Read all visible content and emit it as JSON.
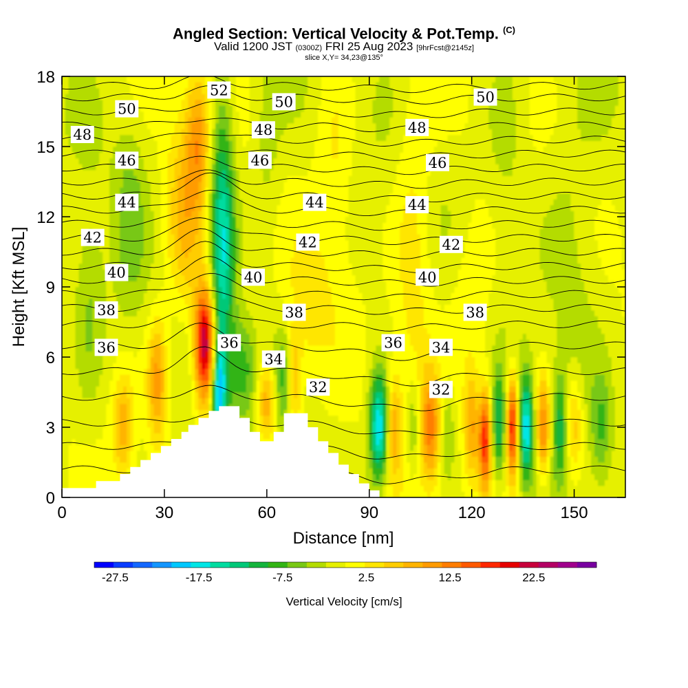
{
  "header": {
    "title": "Angled Section: Vertical Velocity & Pot.Temp.",
    "title_mark": "(C)",
    "subtitle_pre": "Valid 1200 JST",
    "subtitle_zulu": "(0300Z)",
    "subtitle_mid": "FRI 25 Aug 2023",
    "subtitle_fcst": "[9hrFcst@2145z]",
    "slice": "slice X,Y= 34,23@135°"
  },
  "chart_data": {
    "type": "heatmap",
    "xlabel": "Distance [nm]",
    "ylabel": "Height [Kft MSL]",
    "xlim": [
      0,
      165
    ],
    "ylim": [
      0,
      18
    ],
    "x_ticks": [
      0,
      30,
      60,
      90,
      120,
      150
    ],
    "y_ticks": [
      0,
      3,
      6,
      9,
      12,
      15,
      18
    ],
    "x_tick_labels": [
      "0",
      "30",
      "60",
      "90",
      "120",
      "150"
    ],
    "y_tick_labels": [
      "0",
      "3",
      "6",
      "9",
      "12",
      "15",
      "18"
    ],
    "colorbar": {
      "label": "Vertical Velocity [cm/s]",
      "min": -30,
      "max": 30,
      "step": 2.5,
      "tick_values": [
        -27.5,
        -17.5,
        -7.5,
        2.5,
        12.5,
        22.5
      ],
      "tick_labels": [
        "-27.5",
        "-17.5",
        "-7.5",
        "2.5",
        "12.5",
        "22.5"
      ],
      "colors": [
        "#0000ff",
        "#0a3cff",
        "#1468ff",
        "#1496ff",
        "#00c8ff",
        "#00e6e6",
        "#00dca0",
        "#00c878",
        "#14b43c",
        "#32b414",
        "#78c814",
        "#b4dc00",
        "#e6f000",
        "#ffff00",
        "#ffe600",
        "#ffcd00",
        "#ffb400",
        "#ff9b00",
        "#ff7d00",
        "#ff5a00",
        "#ff2800",
        "#e60000",
        "#c8003c",
        "#b40064",
        "#a0008c",
        "#7800a0"
      ]
    },
    "field_background": "#b4dc00",
    "velocity_features": [
      {
        "x": 42,
        "y": 6.5,
        "sx": 2.2,
        "sy": 1.8,
        "w": 28
      },
      {
        "x": 36,
        "y": 12,
        "sx": 4,
        "sy": 3,
        "w": 9
      },
      {
        "x": 28,
        "y": 5,
        "sx": 2,
        "sy": 1.8,
        "w": 12
      },
      {
        "x": 18,
        "y": 3,
        "sx": 2,
        "sy": 1.5,
        "w": 9
      },
      {
        "x": 40,
        "y": 15.5,
        "sx": 2.5,
        "sy": 2,
        "w": 10
      },
      {
        "x": 47,
        "y": 11,
        "sx": 2.5,
        "sy": 4,
        "w": -17
      },
      {
        "x": 46,
        "y": 4.5,
        "sx": 1.5,
        "sy": 1.5,
        "w": -18
      },
      {
        "x": 53,
        "y": 5.5,
        "sx": 3,
        "sy": 1.5,
        "w": -8
      },
      {
        "x": 60,
        "y": 4,
        "sx": 2,
        "sy": 1.2,
        "w": 11
      },
      {
        "x": 65,
        "y": 5,
        "sx": 2,
        "sy": 1.5,
        "w": -7
      },
      {
        "x": 68,
        "y": 5,
        "sx": 1.5,
        "sy": 1.5,
        "w": 10
      },
      {
        "x": 93,
        "y": 3,
        "sx": 2,
        "sy": 1.6,
        "w": -20
      },
      {
        "x": 97,
        "y": 3,
        "sx": 1.5,
        "sy": 1.5,
        "w": 10
      },
      {
        "x": 103,
        "y": 3,
        "sx": 1.5,
        "sy": 1.5,
        "w": -7
      },
      {
        "x": 108,
        "y": 3,
        "sx": 2,
        "sy": 1.6,
        "w": 13
      },
      {
        "x": 113,
        "y": 3,
        "sx": 1.5,
        "sy": 1.5,
        "w": -5
      },
      {
        "x": 120,
        "y": 3,
        "sx": 1.5,
        "sy": 1.5,
        "w": 10
      },
      {
        "x": 124,
        "y": 2.5,
        "sx": 1.3,
        "sy": 1.5,
        "w": 20
      },
      {
        "x": 128,
        "y": 3,
        "sx": 1.5,
        "sy": 1.5,
        "w": -12
      },
      {
        "x": 132,
        "y": 3,
        "sx": 1.3,
        "sy": 1.5,
        "w": 22
      },
      {
        "x": 136,
        "y": 3,
        "sx": 1.5,
        "sy": 1.5,
        "w": -18
      },
      {
        "x": 141,
        "y": 3,
        "sx": 1.5,
        "sy": 1.5,
        "w": 15
      },
      {
        "x": 146,
        "y": 3,
        "sx": 1.5,
        "sy": 1.5,
        "w": -10
      },
      {
        "x": 150,
        "y": 3,
        "sx": 2,
        "sy": 1.5,
        "w": 9
      },
      {
        "x": 158,
        "y": 3,
        "sx": 2,
        "sy": 1.5,
        "w": -6
      },
      {
        "x": 103,
        "y": 10,
        "sx": 4,
        "sy": 6,
        "w": 5
      },
      {
        "x": 120,
        "y": 8,
        "sx": 5,
        "sy": 3,
        "w": 4
      },
      {
        "x": 80,
        "y": 14,
        "sx": 4,
        "sy": 4,
        "w": 4
      },
      {
        "x": 20,
        "y": 12,
        "sx": 3,
        "sy": 3,
        "w": -4
      },
      {
        "x": 8,
        "y": 8,
        "sx": 3,
        "sy": 3,
        "w": -4
      },
      {
        "x": 150,
        "y": 10,
        "sx": 6,
        "sy": 5,
        "w": -3
      },
      {
        "x": 60,
        "y": 15,
        "sx": 3,
        "sy": 3,
        "w": -3
      },
      {
        "x": 130,
        "y": 15,
        "sx": 4,
        "sy": 3,
        "w": -3
      },
      {
        "x": 72,
        "y": 8,
        "sx": 4,
        "sy": 2,
        "w": 4
      }
    ],
    "terrain": [
      [
        0,
        0.4
      ],
      [
        10,
        0.4
      ],
      [
        10,
        0.7
      ],
      [
        14,
        0.7
      ],
      [
        14,
        0.7
      ],
      [
        17,
        0.7
      ],
      [
        17,
        1
      ],
      [
        20,
        1
      ],
      [
        20,
        1.3
      ],
      [
        23,
        1.3
      ],
      [
        23,
        1.6
      ],
      [
        26,
        1.6
      ],
      [
        26,
        1.9
      ],
      [
        29,
        1.9
      ],
      [
        29,
        2.2
      ],
      [
        32,
        2.2
      ],
      [
        32,
        2.5
      ],
      [
        35,
        2.5
      ],
      [
        35,
        2.8
      ],
      [
        37,
        2.8
      ],
      [
        37,
        3.1
      ],
      [
        40,
        3.1
      ],
      [
        40,
        3.4
      ],
      [
        43,
        3.4
      ],
      [
        43,
        3.7
      ],
      [
        46,
        3.7
      ],
      [
        46,
        3.9
      ],
      [
        52,
        3.9
      ],
      [
        52,
        3.4
      ],
      [
        55,
        3.4
      ],
      [
        55,
        2.8
      ],
      [
        58,
        2.8
      ],
      [
        58,
        2.4
      ],
      [
        62,
        2.4
      ],
      [
        62,
        2.8
      ],
      [
        65,
        2.8
      ],
      [
        65,
        3.6
      ],
      [
        72,
        3.6
      ],
      [
        72,
        3.0
      ],
      [
        75,
        3.0
      ],
      [
        75,
        2.4
      ],
      [
        78,
        2.4
      ],
      [
        78,
        1.9
      ],
      [
        81,
        1.9
      ],
      [
        81,
        1.4
      ],
      [
        84,
        1.4
      ],
      [
        84,
        1.0
      ],
      [
        87,
        1.0
      ],
      [
        87,
        0.6
      ],
      [
        90,
        0.6
      ],
      [
        90,
        0.3
      ],
      [
        93,
        0.3
      ],
      [
        93,
        0
      ]
    ],
    "contour_labels": [
      {
        "text": "52",
        "x": 46,
        "y": 17.4
      },
      {
        "text": "50",
        "x": 19,
        "y": 16.6
      },
      {
        "text": "50",
        "x": 65,
        "y": 16.9
      },
      {
        "text": "50",
        "x": 124,
        "y": 17.1
      },
      {
        "text": "48",
        "x": 6,
        "y": 15.5
      },
      {
        "text": "48",
        "x": 59,
        "y": 15.7
      },
      {
        "text": "48",
        "x": 104,
        "y": 15.8
      },
      {
        "text": "46",
        "x": 19,
        "y": 14.4
      },
      {
        "text": "46",
        "x": 58,
        "y": 14.4
      },
      {
        "text": "46",
        "x": 110,
        "y": 14.3
      },
      {
        "text": "44",
        "x": 19,
        "y": 12.6
      },
      {
        "text": "44",
        "x": 74,
        "y": 12.6
      },
      {
        "text": "44",
        "x": 104,
        "y": 12.5
      },
      {
        "text": "42",
        "x": 9,
        "y": 11.1
      },
      {
        "text": "42",
        "x": 72,
        "y": 10.9
      },
      {
        "text": "42",
        "x": 114,
        "y": 10.8
      },
      {
        "text": "40",
        "x": 16,
        "y": 9.6
      },
      {
        "text": "40",
        "x": 56,
        "y": 9.4
      },
      {
        "text": "40",
        "x": 107,
        "y": 9.4
      },
      {
        "text": "38",
        "x": 13,
        "y": 8.0
      },
      {
        "text": "38",
        "x": 68,
        "y": 7.9
      },
      {
        "text": "38",
        "x": 121,
        "y": 7.9
      },
      {
        "text": "36",
        "x": 13,
        "y": 6.4
      },
      {
        "text": "36",
        "x": 49,
        "y": 6.6
      },
      {
        "text": "36",
        "x": 97,
        "y": 6.6
      },
      {
        "text": "34",
        "x": 62,
        "y": 5.9
      },
      {
        "text": "34",
        "x": 111,
        "y": 6.4
      },
      {
        "text": "32",
        "x": 75,
        "y": 4.7
      },
      {
        "text": "32",
        "x": 111,
        "y": 4.6
      }
    ],
    "isentropes_kft": [
      1.2,
      2.2,
      3.2,
      4.3,
      5.4,
      6.5,
      7.4,
      8.1,
      8.7,
      9.3,
      9.9,
      10.5,
      11.1,
      11.7,
      12.3,
      12.9,
      13.5,
      14.1,
      14.7,
      15.3,
      15.9,
      16.5,
      17.1,
      17.6
    ]
  }
}
